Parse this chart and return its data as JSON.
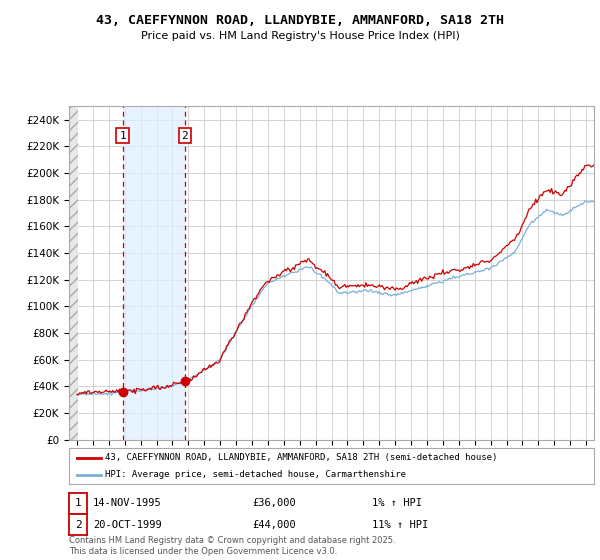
{
  "title": "43, CAEFFYNNON ROAD, LLANDYBIE, AMMANFORD, SA18 2TH",
  "subtitle": "Price paid vs. HM Land Registry's House Price Index (HPI)",
  "ylim": [
    0,
    250000
  ],
  "yticks": [
    0,
    20000,
    40000,
    60000,
    80000,
    100000,
    120000,
    140000,
    160000,
    180000,
    200000,
    220000,
    240000
  ],
  "ytick_labels": [
    "£0",
    "£20K",
    "£40K",
    "£60K",
    "£80K",
    "£100K",
    "£120K",
    "£140K",
    "£160K",
    "£180K",
    "£200K",
    "£220K",
    "£240K"
  ],
  "sale1_date_num": 1995.87,
  "sale1_price": 36000,
  "sale1_label": "14-NOV-1995",
  "sale1_pct": "1% ↑ HPI",
  "sale2_date_num": 1999.79,
  "sale2_price": 44000,
  "sale2_label": "20-OCT-1999",
  "sale2_pct": "11% ↑ HPI",
  "legend1": "43, CAEFFYNNON ROAD, LLANDYBIE, AMMANFORD, SA18 2TH (semi-detached house)",
  "legend2": "HPI: Average price, semi-detached house, Carmarthenshire",
  "footer": "Contains HM Land Registry data © Crown copyright and database right 2025.\nThis data is licensed under the Open Government Licence v3.0.",
  "red_color": "#cc0000",
  "blue_color": "#7ab0d4",
  "shade_color": "#ddeeff",
  "background_color": "#ffffff",
  "grid_color": "#cccccc"
}
